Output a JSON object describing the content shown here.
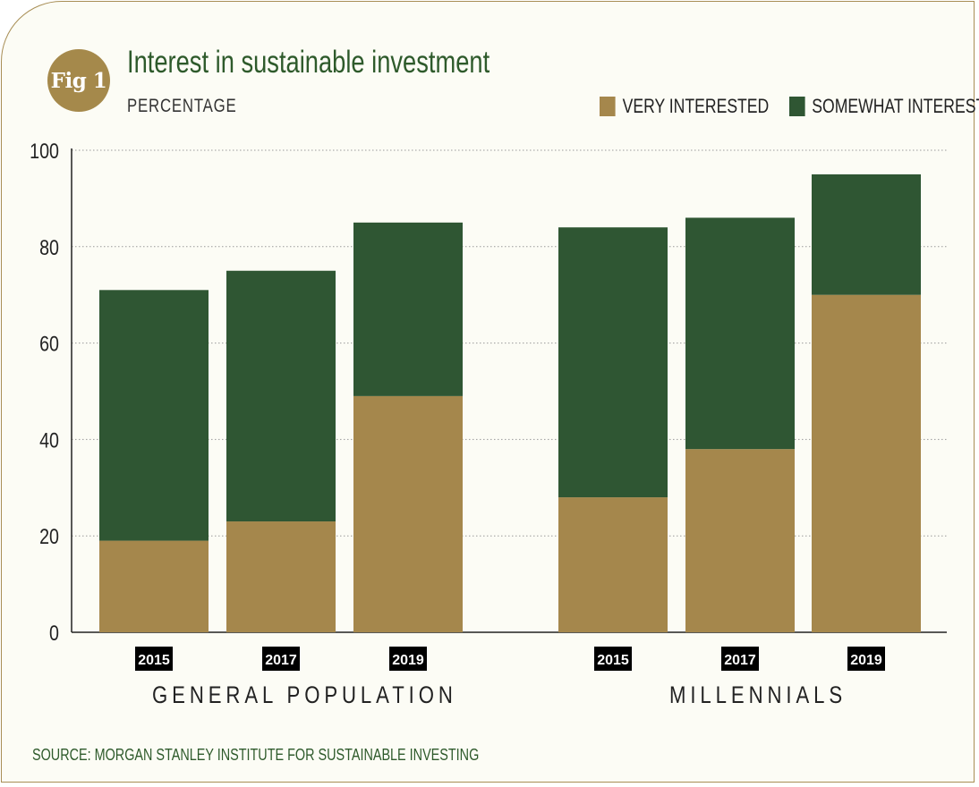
{
  "badge": {
    "text": "Fig 1"
  },
  "colors": {
    "very": "#a5874c",
    "somewhat": "#2f5633",
    "grid": "#9a9a9a",
    "axis": "#222222"
  },
  "chart_data": {
    "type": "bar",
    "stacked": true,
    "title": "Interest in sustainable investment",
    "subtitle": "PERCENTAGE",
    "ylim": [
      0,
      100
    ],
    "yticks": [
      0,
      20,
      40,
      60,
      80,
      100
    ],
    "legend": [
      "VERY INTERESTED",
      "SOMEWHAT INTERESTED"
    ],
    "legend_position": "top-right",
    "grid": true,
    "groups": [
      {
        "label": "GENERAL POPULATION",
        "bars": [
          {
            "year": "2015",
            "very": 19,
            "somewhat": 52
          },
          {
            "year": "2017",
            "very": 23,
            "somewhat": 52
          },
          {
            "year": "2019",
            "very": 49,
            "somewhat": 36
          }
        ]
      },
      {
        "label": "MILLENNIALS",
        "bars": [
          {
            "year": "2015",
            "very": 28,
            "somewhat": 56
          },
          {
            "year": "2017",
            "very": 38,
            "somewhat": 48
          },
          {
            "year": "2019",
            "very": 70,
            "somewhat": 25
          }
        ]
      }
    ],
    "source": "SOURCE: MORGAN STANLEY INSTITUTE FOR SUSTAINABLE INVESTING"
  }
}
